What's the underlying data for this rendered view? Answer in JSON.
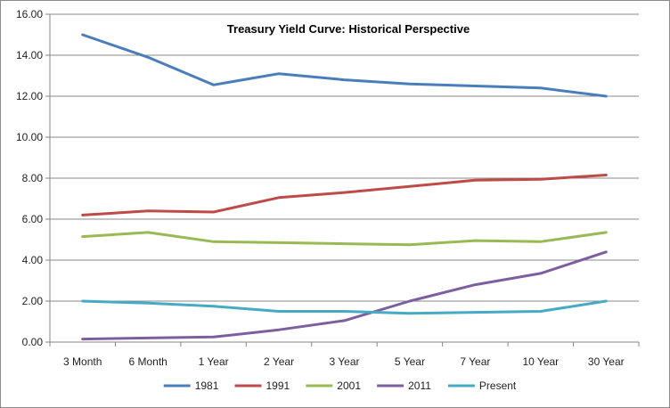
{
  "chart_data": {
    "type": "line",
    "title": "Treasury Yield Curve:  Historical Perspective",
    "xlabel": "",
    "ylabel": "",
    "categories": [
      "3 Month",
      "6 Month",
      "1 Year",
      "2 Year",
      "3 Year",
      "5 Year",
      "7 Year",
      "10 Year",
      "30 Year"
    ],
    "ylim": [
      0,
      16
    ],
    "yticks": [
      "0.00",
      "2.00",
      "4.00",
      "6.00",
      "8.00",
      "10.00",
      "12.00",
      "14.00",
      "16.00"
    ],
    "grid": true,
    "legend_position": "bottom",
    "series": [
      {
        "name": "1981",
        "color": "#4a7ebb",
        "values": [
          15.0,
          13.9,
          12.55,
          13.1,
          12.8,
          12.6,
          12.5,
          12.4,
          12.0
        ]
      },
      {
        "name": "1991",
        "color": "#be4b48",
        "values": [
          6.2,
          6.4,
          6.35,
          7.05,
          7.3,
          7.6,
          7.9,
          7.95,
          8.15
        ]
      },
      {
        "name": "2001",
        "color": "#98b954",
        "values": [
          5.15,
          5.35,
          4.9,
          4.85,
          4.8,
          4.75,
          4.95,
          4.9,
          5.35
        ]
      },
      {
        "name": "2011",
        "color": "#7d5fa0",
        "values": [
          0.15,
          0.2,
          0.25,
          0.6,
          1.05,
          2.0,
          2.8,
          3.35,
          4.4
        ]
      },
      {
        "name": "Present",
        "color": "#46aac5",
        "values": [
          2.0,
          1.9,
          1.75,
          1.5,
          1.5,
          1.4,
          1.45,
          1.5,
          2.0
        ]
      }
    ]
  }
}
